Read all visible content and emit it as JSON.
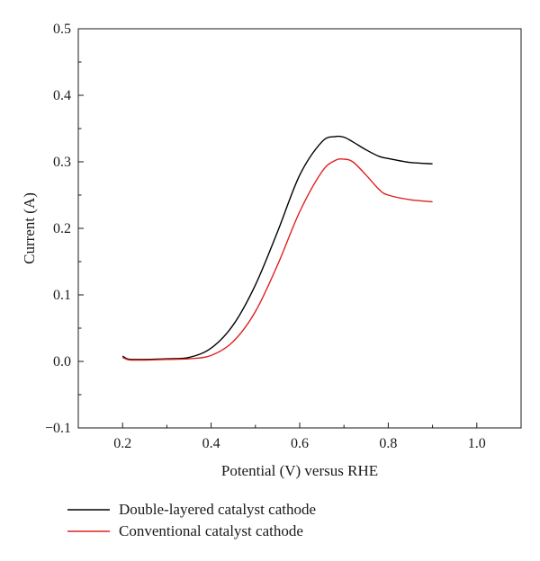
{
  "chart_data": {
    "type": "line",
    "title": "",
    "xlabel": "Potential (V) versus RHE",
    "ylabel": "Current (A)",
    "xlim": [
      0.1,
      1.1
    ],
    "ylim": [
      -0.1,
      0.5
    ],
    "xticks": [
      0.2,
      0.4,
      0.6,
      0.8,
      1.0
    ],
    "xtick_labels": [
      "0.2",
      "0.4",
      "0.6",
      "0.8",
      "1.0"
    ],
    "yticks": [
      -0.1,
      0.0,
      0.1,
      0.2,
      0.3,
      0.4,
      0.5
    ],
    "ytick_labels": [
      "−0.1",
      "0.0",
      "0.1",
      "0.2",
      "0.3",
      "0.4",
      "0.5"
    ],
    "grid": false,
    "legend_position": "bottom-left, below plot",
    "series": [
      {
        "name": "Double-layered catalyst cathode",
        "color": "#000000",
        "x": [
          0.2,
          0.21,
          0.22,
          0.25,
          0.3,
          0.35,
          0.4,
          0.45,
          0.5,
          0.55,
          0.6,
          0.65,
          0.68,
          0.7,
          0.72,
          0.75,
          0.78,
          0.8,
          0.85,
          0.9
        ],
        "y": [
          0.008,
          0.004,
          0.003,
          0.003,
          0.004,
          0.006,
          0.02,
          0.055,
          0.115,
          0.195,
          0.28,
          0.33,
          0.338,
          0.337,
          0.33,
          0.318,
          0.308,
          0.305,
          0.299,
          0.297
        ]
      },
      {
        "name": "Conventional catalyst cathode",
        "color": "#e02020",
        "x": [
          0.2,
          0.21,
          0.22,
          0.25,
          0.3,
          0.35,
          0.4,
          0.45,
          0.5,
          0.55,
          0.6,
          0.65,
          0.68,
          0.7,
          0.72,
          0.75,
          0.78,
          0.8,
          0.85,
          0.9
        ],
        "y": [
          0.006,
          0.003,
          0.002,
          0.002,
          0.003,
          0.004,
          0.009,
          0.03,
          0.075,
          0.145,
          0.225,
          0.285,
          0.302,
          0.304,
          0.3,
          0.28,
          0.258,
          0.25,
          0.243,
          0.24
        ]
      }
    ]
  }
}
